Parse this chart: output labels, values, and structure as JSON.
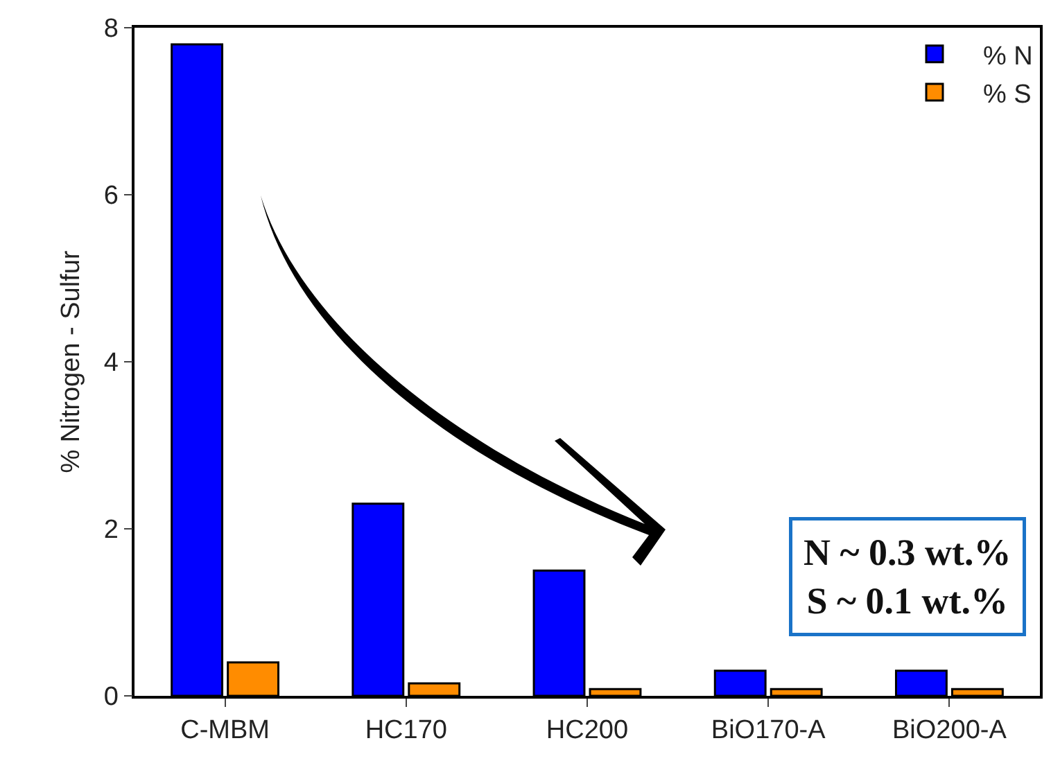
{
  "chart_data": {
    "type": "bar",
    "ylabel": "% Nitrogen - Sulfur",
    "categories": [
      "C-MBM",
      "HC170",
      "HC200",
      "BiO170-A",
      "BiO200-A"
    ],
    "series": [
      {
        "name": "% N",
        "color": "#0000ff",
        "values": [
          7.8,
          2.3,
          1.5,
          0.3,
          0.3
        ]
      },
      {
        "name": "% S",
        "color": "#ff8c00",
        "values": [
          0.4,
          0.15,
          0.08,
          0.08,
          0.08
        ]
      }
    ],
    "ylim": [
      0,
      8
    ],
    "yticks": [
      0,
      2,
      4,
      6,
      8
    ],
    "grid": false,
    "legend": "top right",
    "annotations": [
      "N ~ 0.3 wt.%\nS ~ 0.1 wt.%"
    ]
  }
}
